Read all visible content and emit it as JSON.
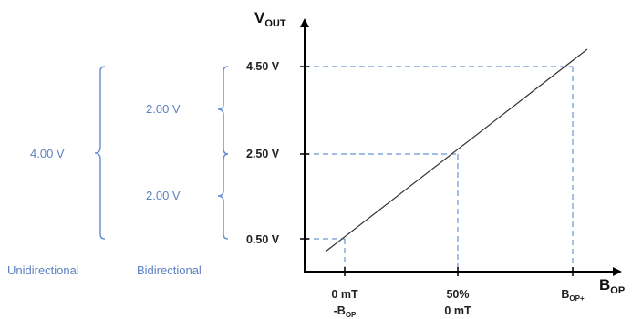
{
  "colors": {
    "accent_blue": "#5b80c2",
    "dashed_blue": "#6c93d0",
    "axis": "#000000",
    "line": "#333333"
  },
  "axes": {
    "y_label": {
      "main": "V",
      "sub": "OUT"
    },
    "x_label": {
      "main": "B",
      "sub": "OP"
    }
  },
  "y_ticks": [
    "4.50 V",
    "2.50 V",
    "0.50 V"
  ],
  "x_ticks": [
    {
      "line1": "0 mT",
      "line2_main": "-B",
      "line2_sub": "OP"
    },
    {
      "line1": "50%",
      "line2": "0 mT"
    },
    {
      "main": "B",
      "sub": "OP+"
    }
  ],
  "left_spans": {
    "unidirectional": {
      "value": "4.00 V",
      "caption": "Unidirectional"
    },
    "bidirectional": {
      "upper": "2.00 V",
      "lower": "2.00 V",
      "caption": "Bidirectional"
    }
  }
}
